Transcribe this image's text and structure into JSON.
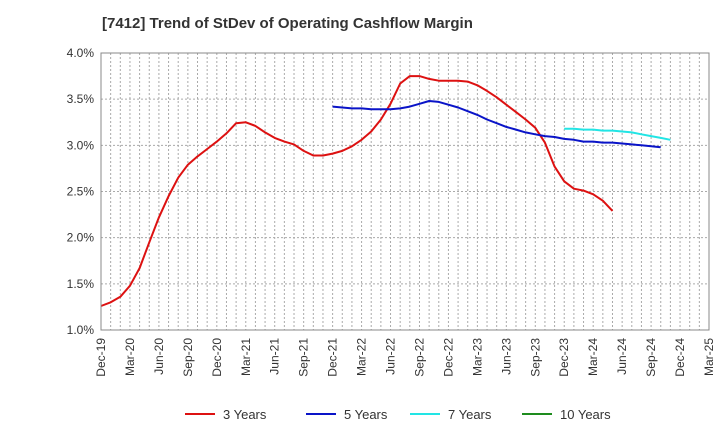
{
  "chart_data": {
    "type": "line",
    "title": "[7412]  Trend of StDev of Operating Cashflow Margin",
    "xlabel": "",
    "ylabel": "",
    "ylim": [
      1.0,
      4.0
    ],
    "y_ticks": [
      "1.0%",
      "1.5%",
      "2.0%",
      "2.5%",
      "3.0%",
      "3.5%",
      "4.0%"
    ],
    "x_ticks": [
      "Dec-19",
      "Mar-20",
      "Jun-20",
      "Sep-20",
      "Dec-20",
      "Mar-21",
      "Jun-21",
      "Sep-21",
      "Dec-21",
      "Mar-22",
      "Jun-22",
      "Sep-22",
      "Dec-22",
      "Mar-23",
      "Jun-23",
      "Sep-23",
      "Dec-23",
      "Mar-24",
      "Jun-24",
      "Sep-24",
      "Dec-24",
      "Mar-25"
    ],
    "grid": true,
    "legend_position": "bottom",
    "series": [
      {
        "name": "3 Years",
        "color": "#dd1111",
        "start_index": 0,
        "values": [
          1.26,
          1.3,
          1.36,
          1.48,
          1.67,
          1.95,
          2.22,
          2.45,
          2.65,
          2.79,
          2.88,
          2.96,
          3.04,
          3.13,
          3.24,
          3.25,
          3.21,
          3.14,
          3.08,
          3.04,
          3.01,
          2.94,
          2.89,
          2.89,
          2.91,
          2.94,
          2.99,
          3.06,
          3.15,
          3.28,
          3.45,
          3.67,
          3.75,
          3.75,
          3.72,
          3.7,
          3.7,
          3.7,
          3.69,
          3.65,
          3.59,
          3.52,
          3.44,
          3.36,
          3.28,
          3.19,
          3.03,
          2.77,
          2.61,
          2.53,
          2.51,
          2.47,
          2.4,
          2.29
        ]
      },
      {
        "name": "5 Years",
        "color": "#0a14c8",
        "start_index": 24,
        "values": [
          3.42,
          3.41,
          3.4,
          3.4,
          3.39,
          3.39,
          3.39,
          3.4,
          3.42,
          3.45,
          3.48,
          3.47,
          3.44,
          3.41,
          3.37,
          3.33,
          3.28,
          3.24,
          3.2,
          3.17,
          3.14,
          3.12,
          3.1,
          3.09,
          3.07,
          3.06,
          3.04,
          3.04,
          3.03,
          3.03,
          3.02,
          3.01,
          3.0,
          2.99,
          2.98
        ]
      },
      {
        "name": "7 Years",
        "color": "#22e5e5",
        "start_index": 48,
        "values": [
          3.18,
          3.18,
          3.17,
          3.17,
          3.16,
          3.16,
          3.15,
          3.14,
          3.12,
          3.1,
          3.08,
          3.06
        ]
      },
      {
        "name": "10 Years",
        "color": "#1e8c1e",
        "start_index": 0,
        "values": []
      }
    ]
  }
}
